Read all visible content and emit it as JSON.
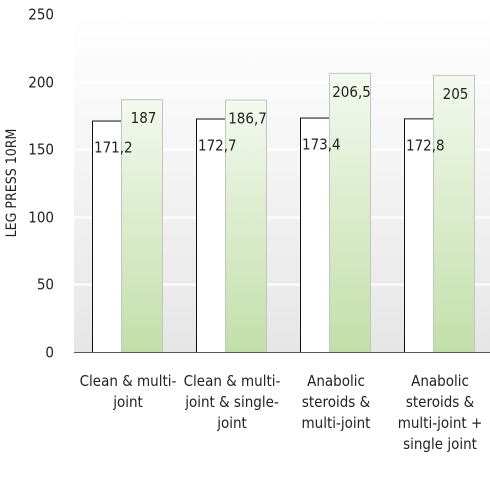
{
  "chart_data": {
    "type": "bar",
    "title": "",
    "xlabel": "",
    "ylabel": "LEG PRESS 10RM",
    "ylim": [
      0,
      250
    ],
    "yticks": [
      0,
      50,
      100,
      150,
      200,
      250
    ],
    "grid": true,
    "categories": [
      [
        "Clean & multi-",
        "joint"
      ],
      [
        "Clean & multi-",
        "joint & single-",
        "joint"
      ],
      [
        "Anabolic",
        "steroids &",
        "multi-joint"
      ],
      [
        "Anabolic",
        "steroids &",
        "multi-joint +",
        "single joint"
      ]
    ],
    "series": [
      {
        "values": [
          171.2,
          172.7,
          173.4,
          172.8
        ],
        "labels": [
          "171,2",
          "172,7",
          "173,4",
          "172,8"
        ],
        "color": "#ffffff"
      },
      {
        "values": [
          187,
          186.7,
          206.5,
          205
        ],
        "labels": [
          "187",
          "186,7",
          "206,5",
          "205"
        ],
        "color": "#c9e3b4"
      }
    ]
  }
}
